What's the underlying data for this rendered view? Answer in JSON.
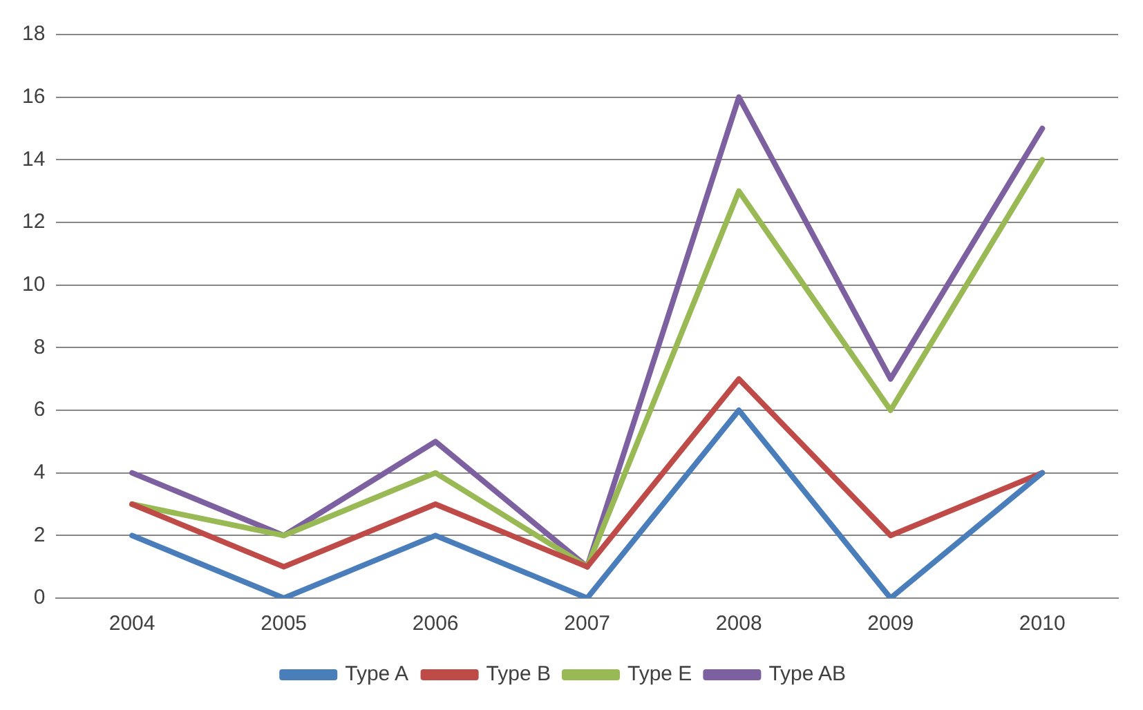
{
  "chart_data": {
    "type": "line",
    "categories": [
      "2004",
      "2005",
      "2006",
      "2007",
      "2008",
      "2009",
      "2010"
    ],
    "series": [
      {
        "name": "Type A",
        "color": "#4a7ebb",
        "values": [
          2,
          0,
          2,
          0,
          6,
          0,
          4
        ]
      },
      {
        "name": "Type B",
        "color": "#be4b48",
        "values": [
          3,
          1,
          3,
          1,
          7,
          2,
          4
        ]
      },
      {
        "name": "Type E",
        "color": "#98b954",
        "values": [
          3,
          2,
          4,
          1,
          13,
          6,
          14
        ]
      },
      {
        "name": "Type AB",
        "color": "#7d60a0",
        "values": [
          4,
          2,
          5,
          1,
          16,
          7,
          15
        ]
      }
    ],
    "ylim": [
      0,
      18
    ],
    "yticks": [
      0,
      2,
      4,
      6,
      8,
      10,
      12,
      14,
      16,
      18
    ],
    "grid": "y",
    "legend": "bottom",
    "marker": "none",
    "line_style": "solid"
  }
}
